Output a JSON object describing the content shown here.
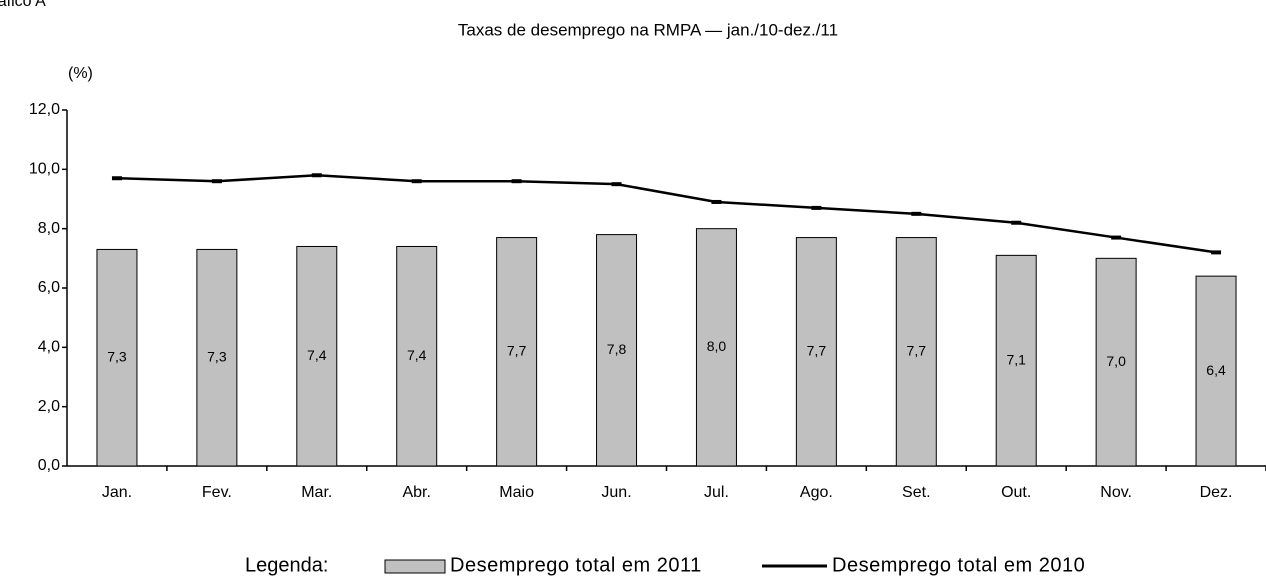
{
  "label": "Gráfico A",
  "chart_data": {
    "type": "bar",
    "title": "Taxas de desemprego na RMPA — jan./10-dez./11",
    "y_axis_label": "(%)",
    "legend_title": "Legenda:",
    "categories": [
      "Jan.",
      "Fev.",
      "Mar.",
      "Abr.",
      "Maio",
      "Jun.",
      "Jul.",
      "Ago.",
      "Set.",
      "Out.",
      "Nov.",
      "Dez."
    ],
    "series": [
      {
        "name": "Desemprego total em 2011",
        "type": "bar",
        "color": "#c0c0c0",
        "values": [
          7.3,
          7.3,
          7.4,
          7.4,
          7.7,
          7.8,
          8.0,
          7.7,
          7.7,
          7.1,
          7.0,
          6.4
        ],
        "value_labels": [
          "7,3",
          "7,3",
          "7,4",
          "7,4",
          "7,7",
          "7,8",
          "8,0",
          "7,7",
          "7,7",
          "7,1",
          "7,0",
          "6,4"
        ]
      },
      {
        "name": "Desemprego total em 2010",
        "type": "line",
        "color": "#000000",
        "values": [
          9.7,
          9.6,
          9.8,
          9.6,
          9.6,
          9.5,
          8.9,
          8.7,
          8.5,
          8.2,
          7.7,
          7.2
        ]
      }
    ],
    "ylim": [
      0,
      12
    ],
    "yticks": [
      {
        "value": 0,
        "label": "0,0"
      },
      {
        "value": 2,
        "label": "2,0"
      },
      {
        "value": 4,
        "label": "4,0"
      },
      {
        "value": 6,
        "label": "6,0"
      },
      {
        "value": 8,
        "label": "8,0"
      },
      {
        "value": 10,
        "label": "10,0"
      },
      {
        "value": 12,
        "label": "12,0"
      }
    ],
    "grid": false
  }
}
